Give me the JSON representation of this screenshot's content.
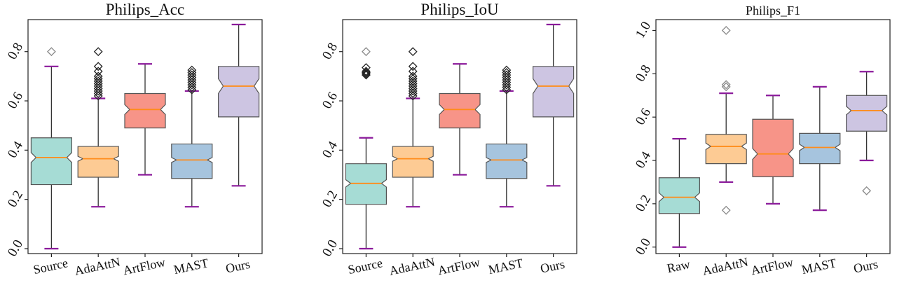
{
  "chart_data": [
    {
      "type": "box",
      "title": "Philips_Acc",
      "categories": [
        "Source",
        "AdaAttN",
        "ArtFlow",
        "MAST",
        "Ours"
      ],
      "ylim": [
        -0.02,
        0.93
      ],
      "yticks": [
        "0.0",
        "0.2",
        "0.4",
        "0.6",
        "0.8"
      ],
      "boxes": [
        {
          "q1": 0.26,
          "median": 0.37,
          "q3": 0.45,
          "notch": [
            0.35,
            0.39
          ],
          "whisker_low": 0.0,
          "whisker_high": 0.74,
          "outliers": [
            0.8
          ],
          "outlier_style": "light"
        },
        {
          "q1": 0.29,
          "median": 0.365,
          "q3": 0.415,
          "notch": [
            0.355,
            0.375
          ],
          "whisker_low": 0.17,
          "whisker_high": 0.61,
          "outliers": [
            0.62,
            0.63,
            0.64,
            0.65,
            0.66,
            0.67,
            0.68,
            0.69,
            0.7,
            0.72,
            0.74,
            0.8
          ],
          "outlier_style": "dark"
        },
        {
          "q1": 0.49,
          "median": 0.565,
          "q3": 0.63,
          "notch": [
            0.545,
            0.585
          ],
          "whisker_low": 0.3,
          "whisker_high": 0.75,
          "outliers": [],
          "outlier_style": "dark"
        },
        {
          "q1": 0.285,
          "median": 0.36,
          "q3": 0.425,
          "notch": [
            0.35,
            0.37
          ],
          "whisker_low": 0.17,
          "whisker_high": 0.64,
          "outliers": [
            0.645,
            0.655,
            0.665,
            0.675,
            0.685,
            0.695,
            0.705,
            0.715,
            0.725
          ],
          "outlier_style": "dark"
        },
        {
          "q1": 0.535,
          "median": 0.66,
          "q3": 0.74,
          "notch": [
            0.63,
            0.69
          ],
          "whisker_low": 0.255,
          "whisker_high": 0.91,
          "outliers": [],
          "outlier_style": "dark"
        }
      ]
    },
    {
      "type": "box",
      "title": "Philips_IoU",
      "categories": [
        "Source",
        "AdaAttN",
        "ArtFlow",
        "MAST",
        "Ours"
      ],
      "ylim": [
        -0.02,
        0.93
      ],
      "yticks": [
        "0.0",
        "0.2",
        "0.4",
        "0.6",
        "0.8"
      ],
      "boxes": [
        {
          "q1": 0.18,
          "median": 0.265,
          "q3": 0.345,
          "notch": [
            0.25,
            0.28
          ],
          "whisker_low": 0.0,
          "whisker_high": 0.45,
          "outliers": [
            0.705,
            0.71,
            0.715,
            0.72,
            0.735,
            0.8
          ],
          "outlier_style": "mixed"
        },
        {
          "q1": 0.29,
          "median": 0.365,
          "q3": 0.415,
          "notch": [
            0.355,
            0.375
          ],
          "whisker_low": 0.17,
          "whisker_high": 0.61,
          "outliers": [
            0.62,
            0.63,
            0.64,
            0.65,
            0.66,
            0.67,
            0.68,
            0.69,
            0.7,
            0.72,
            0.74,
            0.8
          ],
          "outlier_style": "dark"
        },
        {
          "q1": 0.49,
          "median": 0.565,
          "q3": 0.63,
          "notch": [
            0.545,
            0.585
          ],
          "whisker_low": 0.3,
          "whisker_high": 0.75,
          "outliers": [],
          "outlier_style": "dark"
        },
        {
          "q1": 0.285,
          "median": 0.36,
          "q3": 0.425,
          "notch": [
            0.35,
            0.37
          ],
          "whisker_low": 0.17,
          "whisker_high": 0.64,
          "outliers": [
            0.645,
            0.655,
            0.665,
            0.675,
            0.685,
            0.695,
            0.705,
            0.715,
            0.725
          ],
          "outlier_style": "dark"
        },
        {
          "q1": 0.535,
          "median": 0.66,
          "q3": 0.74,
          "notch": [
            0.63,
            0.69
          ],
          "whisker_low": 0.255,
          "whisker_high": 0.91,
          "outliers": [],
          "outlier_style": "dark"
        }
      ]
    },
    {
      "type": "box",
      "title": "Philips_F1",
      "categories": [
        "Raw",
        "AdaAttN",
        "ArtFlow",
        "MAST",
        "Ours"
      ],
      "ylim": [
        -0.03,
        1.05
      ],
      "yticks": [
        "0.0",
        "0.2",
        "0.4",
        "0.6",
        "0.8",
        "1.0"
      ],
      "boxes": [
        {
          "q1": 0.155,
          "median": 0.23,
          "q3": 0.32,
          "notch": [
            0.21,
            0.25
          ],
          "whisker_low": 0.0,
          "whisker_high": 0.5,
          "outliers": [],
          "outlier_style": "light"
        },
        {
          "q1": 0.385,
          "median": 0.465,
          "q3": 0.52,
          "notch": [
            0.45,
            0.48
          ],
          "whisker_low": 0.3,
          "whisker_high": 0.71,
          "outliers": [
            0.74,
            0.75,
            1.0,
            0.17
          ],
          "outlier_style": "light"
        },
        {
          "q1": 0.325,
          "median": 0.43,
          "q3": 0.59,
          "notch": [
            0.405,
            0.455
          ],
          "whisker_low": 0.2,
          "whisker_high": 0.7,
          "outliers": [],
          "outlier_style": "light"
        },
        {
          "q1": 0.385,
          "median": 0.46,
          "q3": 0.525,
          "notch": [
            0.445,
            0.475
          ],
          "whisker_low": 0.17,
          "whisker_high": 0.74,
          "outliers": [],
          "outlier_style": "light"
        },
        {
          "q1": 0.535,
          "median": 0.63,
          "q3": 0.7,
          "notch": [
            0.61,
            0.65
          ],
          "whisker_low": 0.4,
          "whisker_high": 0.81,
          "outliers": [
            0.26
          ],
          "outlier_style": "light"
        }
      ]
    }
  ],
  "colors": {
    "box_fills": [
      "#a6dcd5",
      "#fdcb94",
      "#f79488",
      "#a6c4de",
      "#cdc5e2"
    ],
    "median": "#ff8c1a",
    "whisker_cap": "#8b1a9b",
    "outlier_dark": "#222222",
    "outlier_light": "#888888"
  }
}
